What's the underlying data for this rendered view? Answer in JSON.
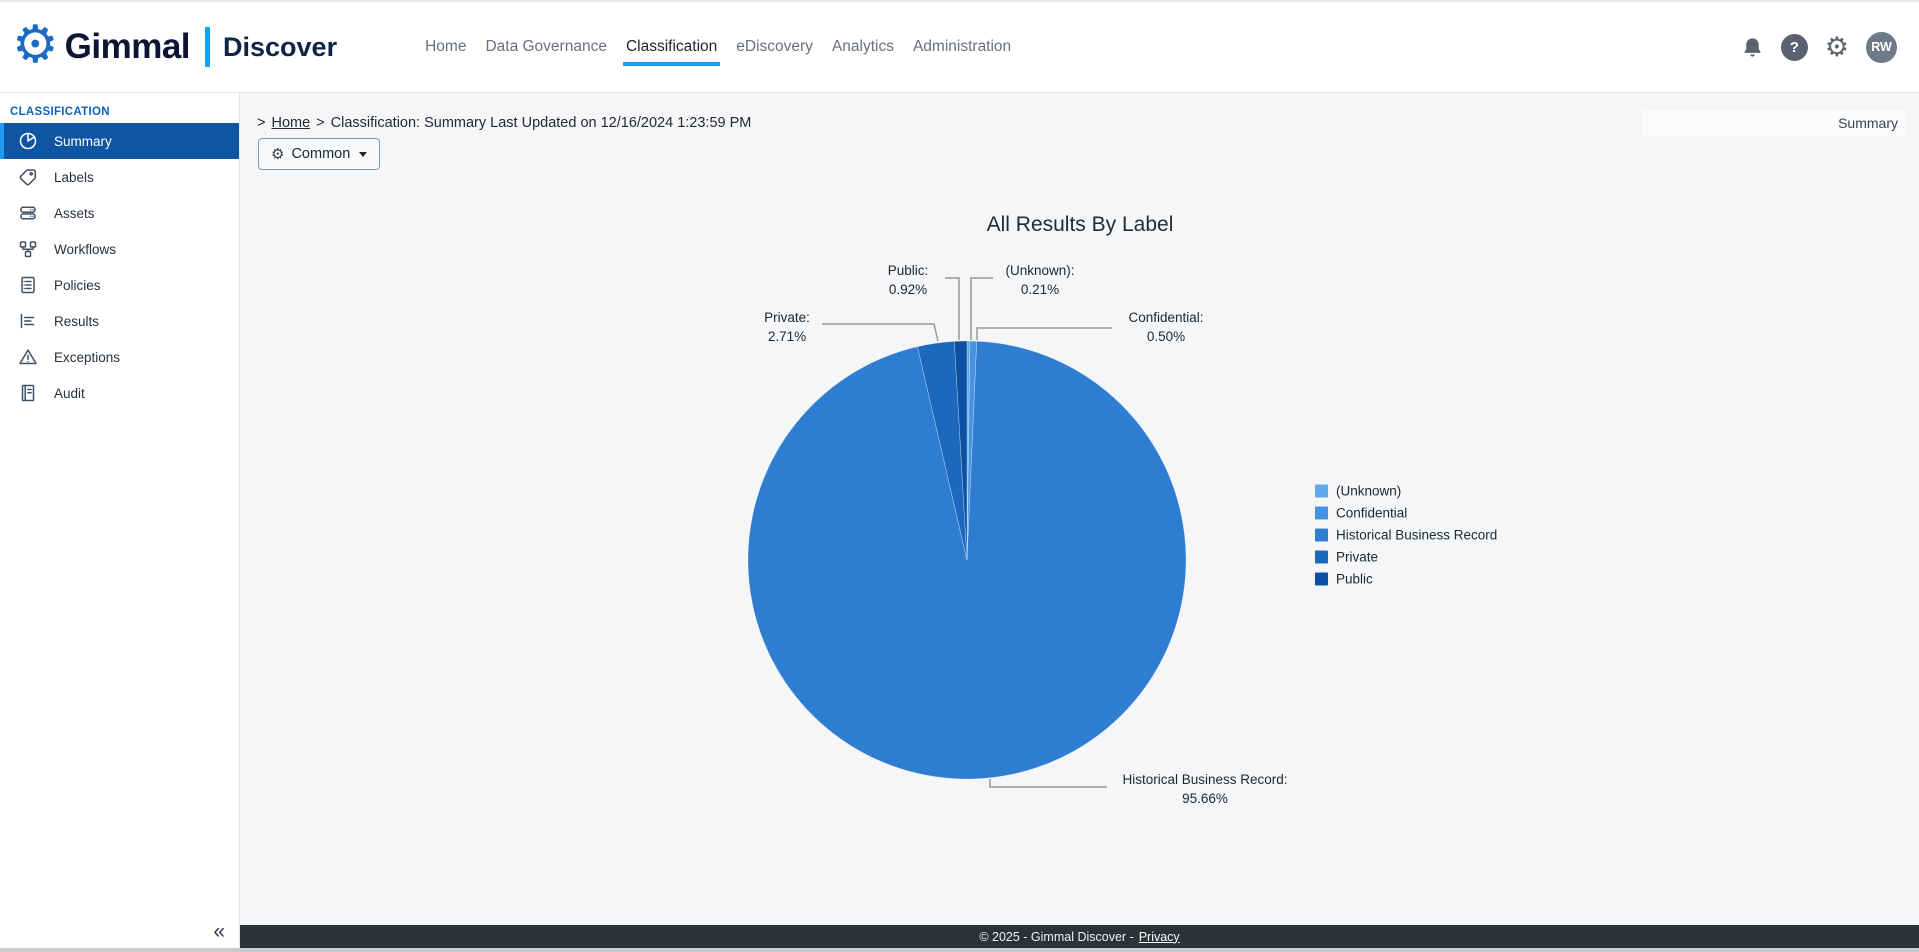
{
  "header": {
    "brand": {
      "name": "Gimmal",
      "product": "Discover"
    },
    "nav": [
      {
        "label": "Home",
        "active": false
      },
      {
        "label": "Data Governance",
        "active": false
      },
      {
        "label": "Classification",
        "active": true
      },
      {
        "label": "eDiscovery",
        "active": false
      },
      {
        "label": "Analytics",
        "active": false
      },
      {
        "label": "Administration",
        "active": false
      }
    ],
    "help_glyph": "?",
    "user_initials": "RW",
    "accent_color": "#18a3f2"
  },
  "sidebar": {
    "section_label": "CLASSIFICATION",
    "items": [
      {
        "label": "Summary",
        "icon": "pie-chart-icon",
        "active": true
      },
      {
        "label": "Labels",
        "icon": "tag-icon",
        "active": false
      },
      {
        "label": "Assets",
        "icon": "server-icon",
        "active": false
      },
      {
        "label": "Workflows",
        "icon": "workflow-icon",
        "active": false
      },
      {
        "label": "Policies",
        "icon": "list-document-icon",
        "active": false
      },
      {
        "label": "Results",
        "icon": "results-list-icon",
        "active": false
      },
      {
        "label": "Exceptions",
        "icon": "warning-triangle-icon",
        "active": false
      },
      {
        "label": "Audit",
        "icon": "book-icon",
        "active": false
      }
    ],
    "collapse_glyph": "«",
    "active_bg": "#0f55a4",
    "active_accent": "#1e9cf0"
  },
  "breadcrumb": {
    "sep1": ">",
    "home_label": "Home",
    "sep2": ">",
    "current": "Classification: Summary Last Updated on 12/16/2024 1:23:59 PM"
  },
  "page_title": "Summary",
  "toolbar": {
    "common_label": "Common"
  },
  "chart_data": {
    "type": "pie",
    "title": "All Results By Label",
    "legend_position": "right",
    "start_angle_deg": 0,
    "direction": "clockwise",
    "series": [
      {
        "name": "(Unknown)",
        "value": 0.21,
        "color": "#61a8e9"
      },
      {
        "name": "Confidential",
        "value": 0.5,
        "color": "#4694e1"
      },
      {
        "name": "Historical Business Record",
        "value": 95.66,
        "color": "#2e7dd1"
      },
      {
        "name": "Private",
        "value": 2.71,
        "color": "#1b68bd"
      },
      {
        "name": "Public",
        "value": 0.92,
        "color": "#0c51a1"
      }
    ]
  },
  "footer": {
    "text": "© 2025 - Gimmal Discover -",
    "privacy_label": "Privacy"
  }
}
